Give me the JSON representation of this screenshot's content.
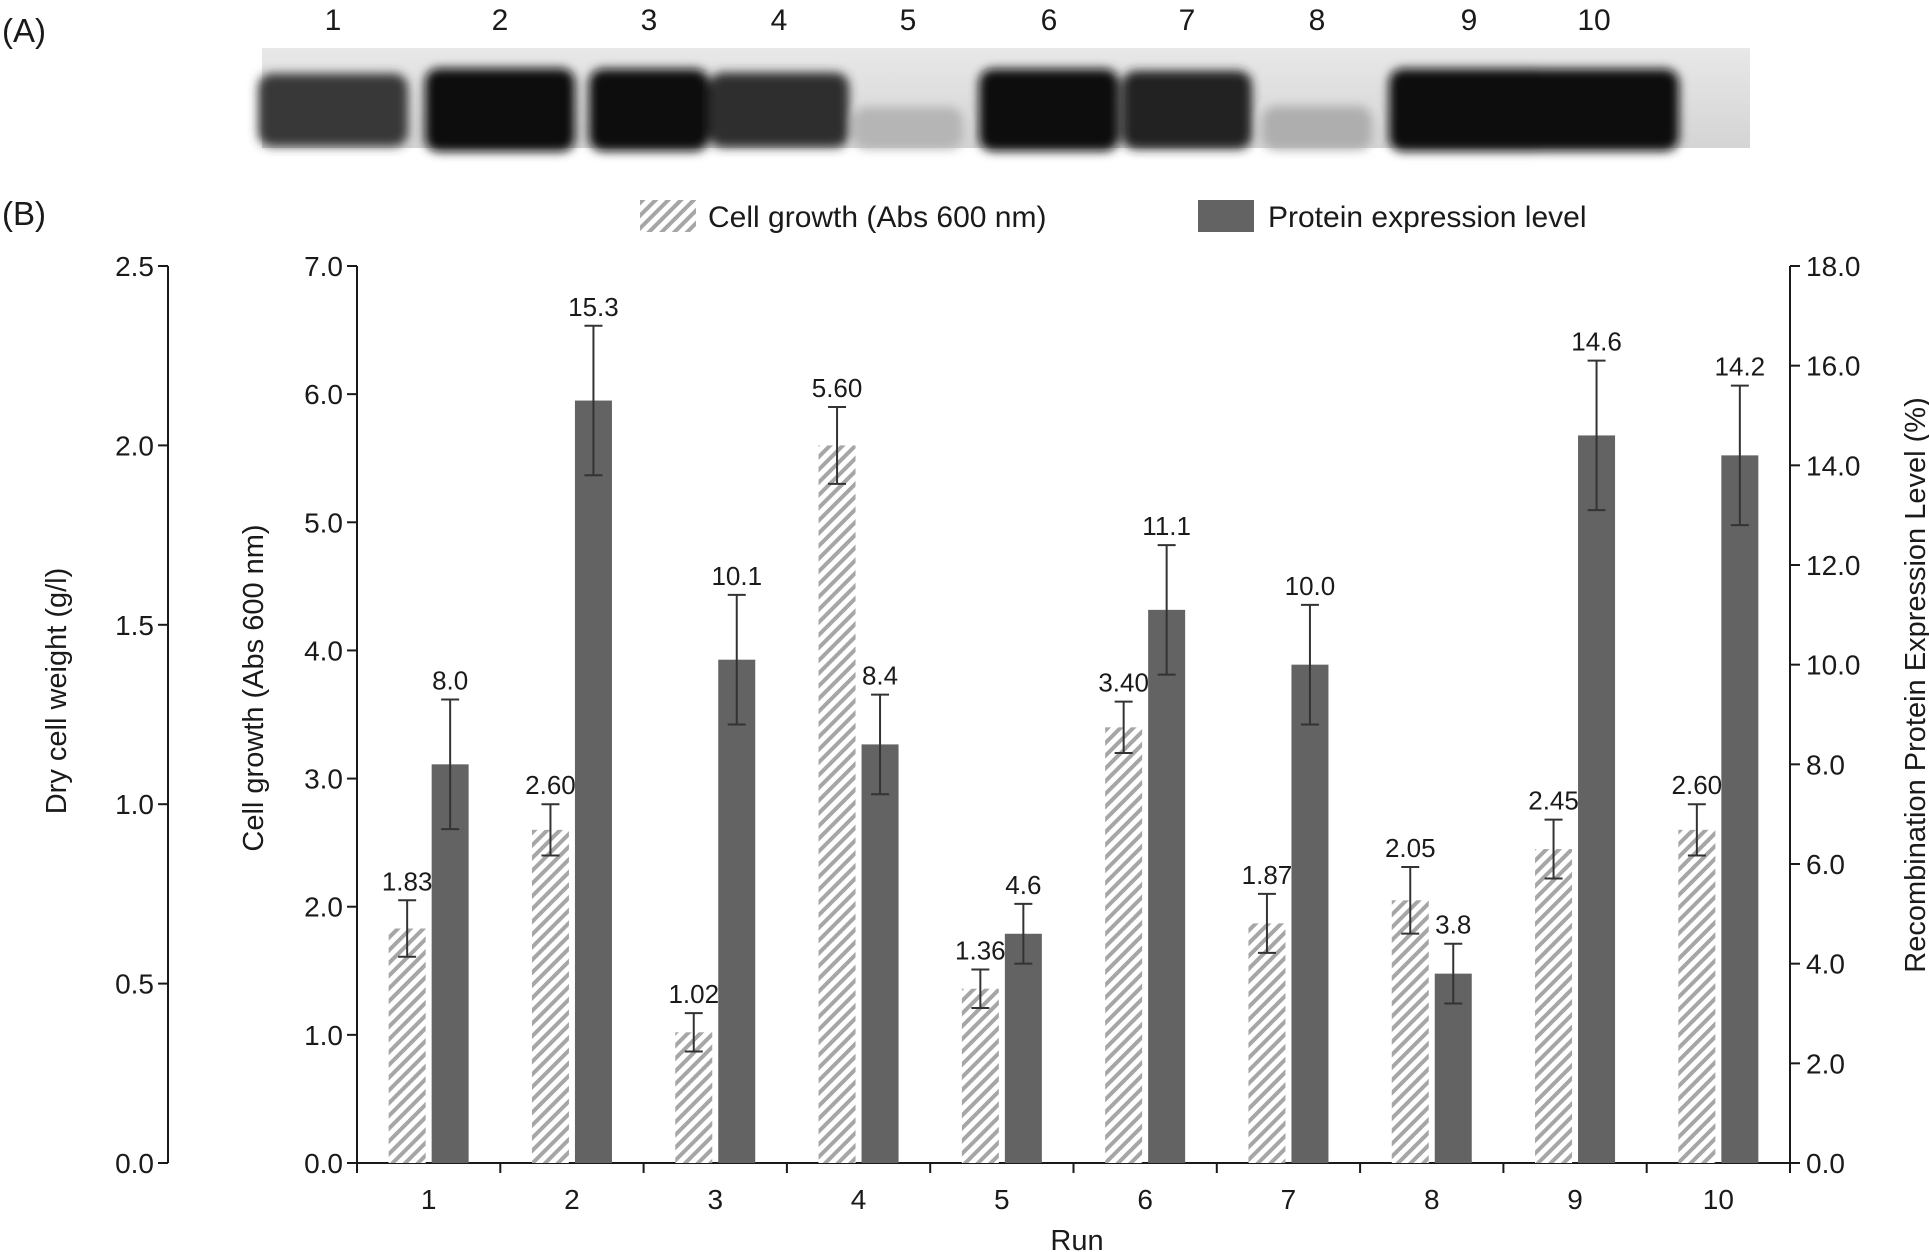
{
  "panel_a": {
    "label": "(A)",
    "lanes": [
      "1",
      "2",
      "3",
      "4",
      "5",
      "6",
      "7",
      "8",
      "9",
      "10"
    ],
    "band_intensity": [
      0.78,
      0.97,
      0.95,
      0.82,
      0.22,
      0.95,
      0.88,
      0.25,
      0.96,
      0.95
    ]
  },
  "panel_b": {
    "label": "(B)"
  },
  "chart_data": {
    "type": "bar",
    "title": "",
    "categories": [
      "1",
      "2",
      "3",
      "4",
      "5",
      "6",
      "7",
      "8",
      "9",
      "10"
    ],
    "xlabel": "Run",
    "series": [
      {
        "name": "Cell growth (Abs 600 nm)",
        "axis": "left-inner",
        "pattern": "diagonal-hatch",
        "color": "#a6a6a6",
        "values": [
          1.83,
          2.6,
          1.02,
          5.6,
          1.36,
          3.4,
          1.87,
          2.05,
          2.45,
          2.6
        ],
        "error": [
          0.22,
          0.2,
          0.15,
          0.3,
          0.15,
          0.2,
          0.23,
          0.26,
          0.23,
          0.2
        ],
        "labels": [
          "1.83",
          "2.60",
          "1.02",
          "5.60",
          "1.36",
          "3.40",
          "1.87",
          "2.05",
          "2.45",
          "2.60"
        ]
      },
      {
        "name": "Protein expression level",
        "axis": "right",
        "pattern": "solid",
        "color": "#636363",
        "values": [
          8.0,
          15.3,
          10.1,
          8.4,
          4.6,
          11.1,
          10.0,
          3.8,
          14.6,
          14.2
        ],
        "error": [
          1.3,
          1.5,
          1.3,
          1.0,
          0.6,
          1.3,
          1.2,
          0.6,
          1.5,
          1.4
        ],
        "labels": [
          "8.0",
          "15.3",
          "10.1",
          "8.4",
          "4.6",
          "11.1",
          "10.0",
          "3.8",
          "14.6",
          "14.2"
        ]
      }
    ],
    "axes": {
      "left_outer": {
        "label": "Dry cell weight (g/l)",
        "ylim": [
          0,
          2.5
        ],
        "ticks": [
          "0.0",
          "0.5",
          "1.0",
          "1.5",
          "2.0",
          "2.5"
        ]
      },
      "left_inner": {
        "label": "Cell growth (Abs 600 nm)",
        "ylim": [
          0,
          7
        ],
        "ticks": [
          "0.0",
          "1.0",
          "2.0",
          "3.0",
          "4.0",
          "5.0",
          "6.0",
          "7.0"
        ]
      },
      "right": {
        "label": "Recombination Protein Expression Level (%)",
        "ylim": [
          0,
          18
        ],
        "ticks": [
          "0.0",
          "2.0",
          "4.0",
          "6.0",
          "8.0",
          "10.0",
          "12.0",
          "14.0",
          "16.0",
          "18.0"
        ]
      }
    },
    "legend": {
      "placement": "top-center",
      "items": [
        "Cell growth (Abs 600 nm)",
        "Protein expression level"
      ]
    },
    "grid": false
  }
}
